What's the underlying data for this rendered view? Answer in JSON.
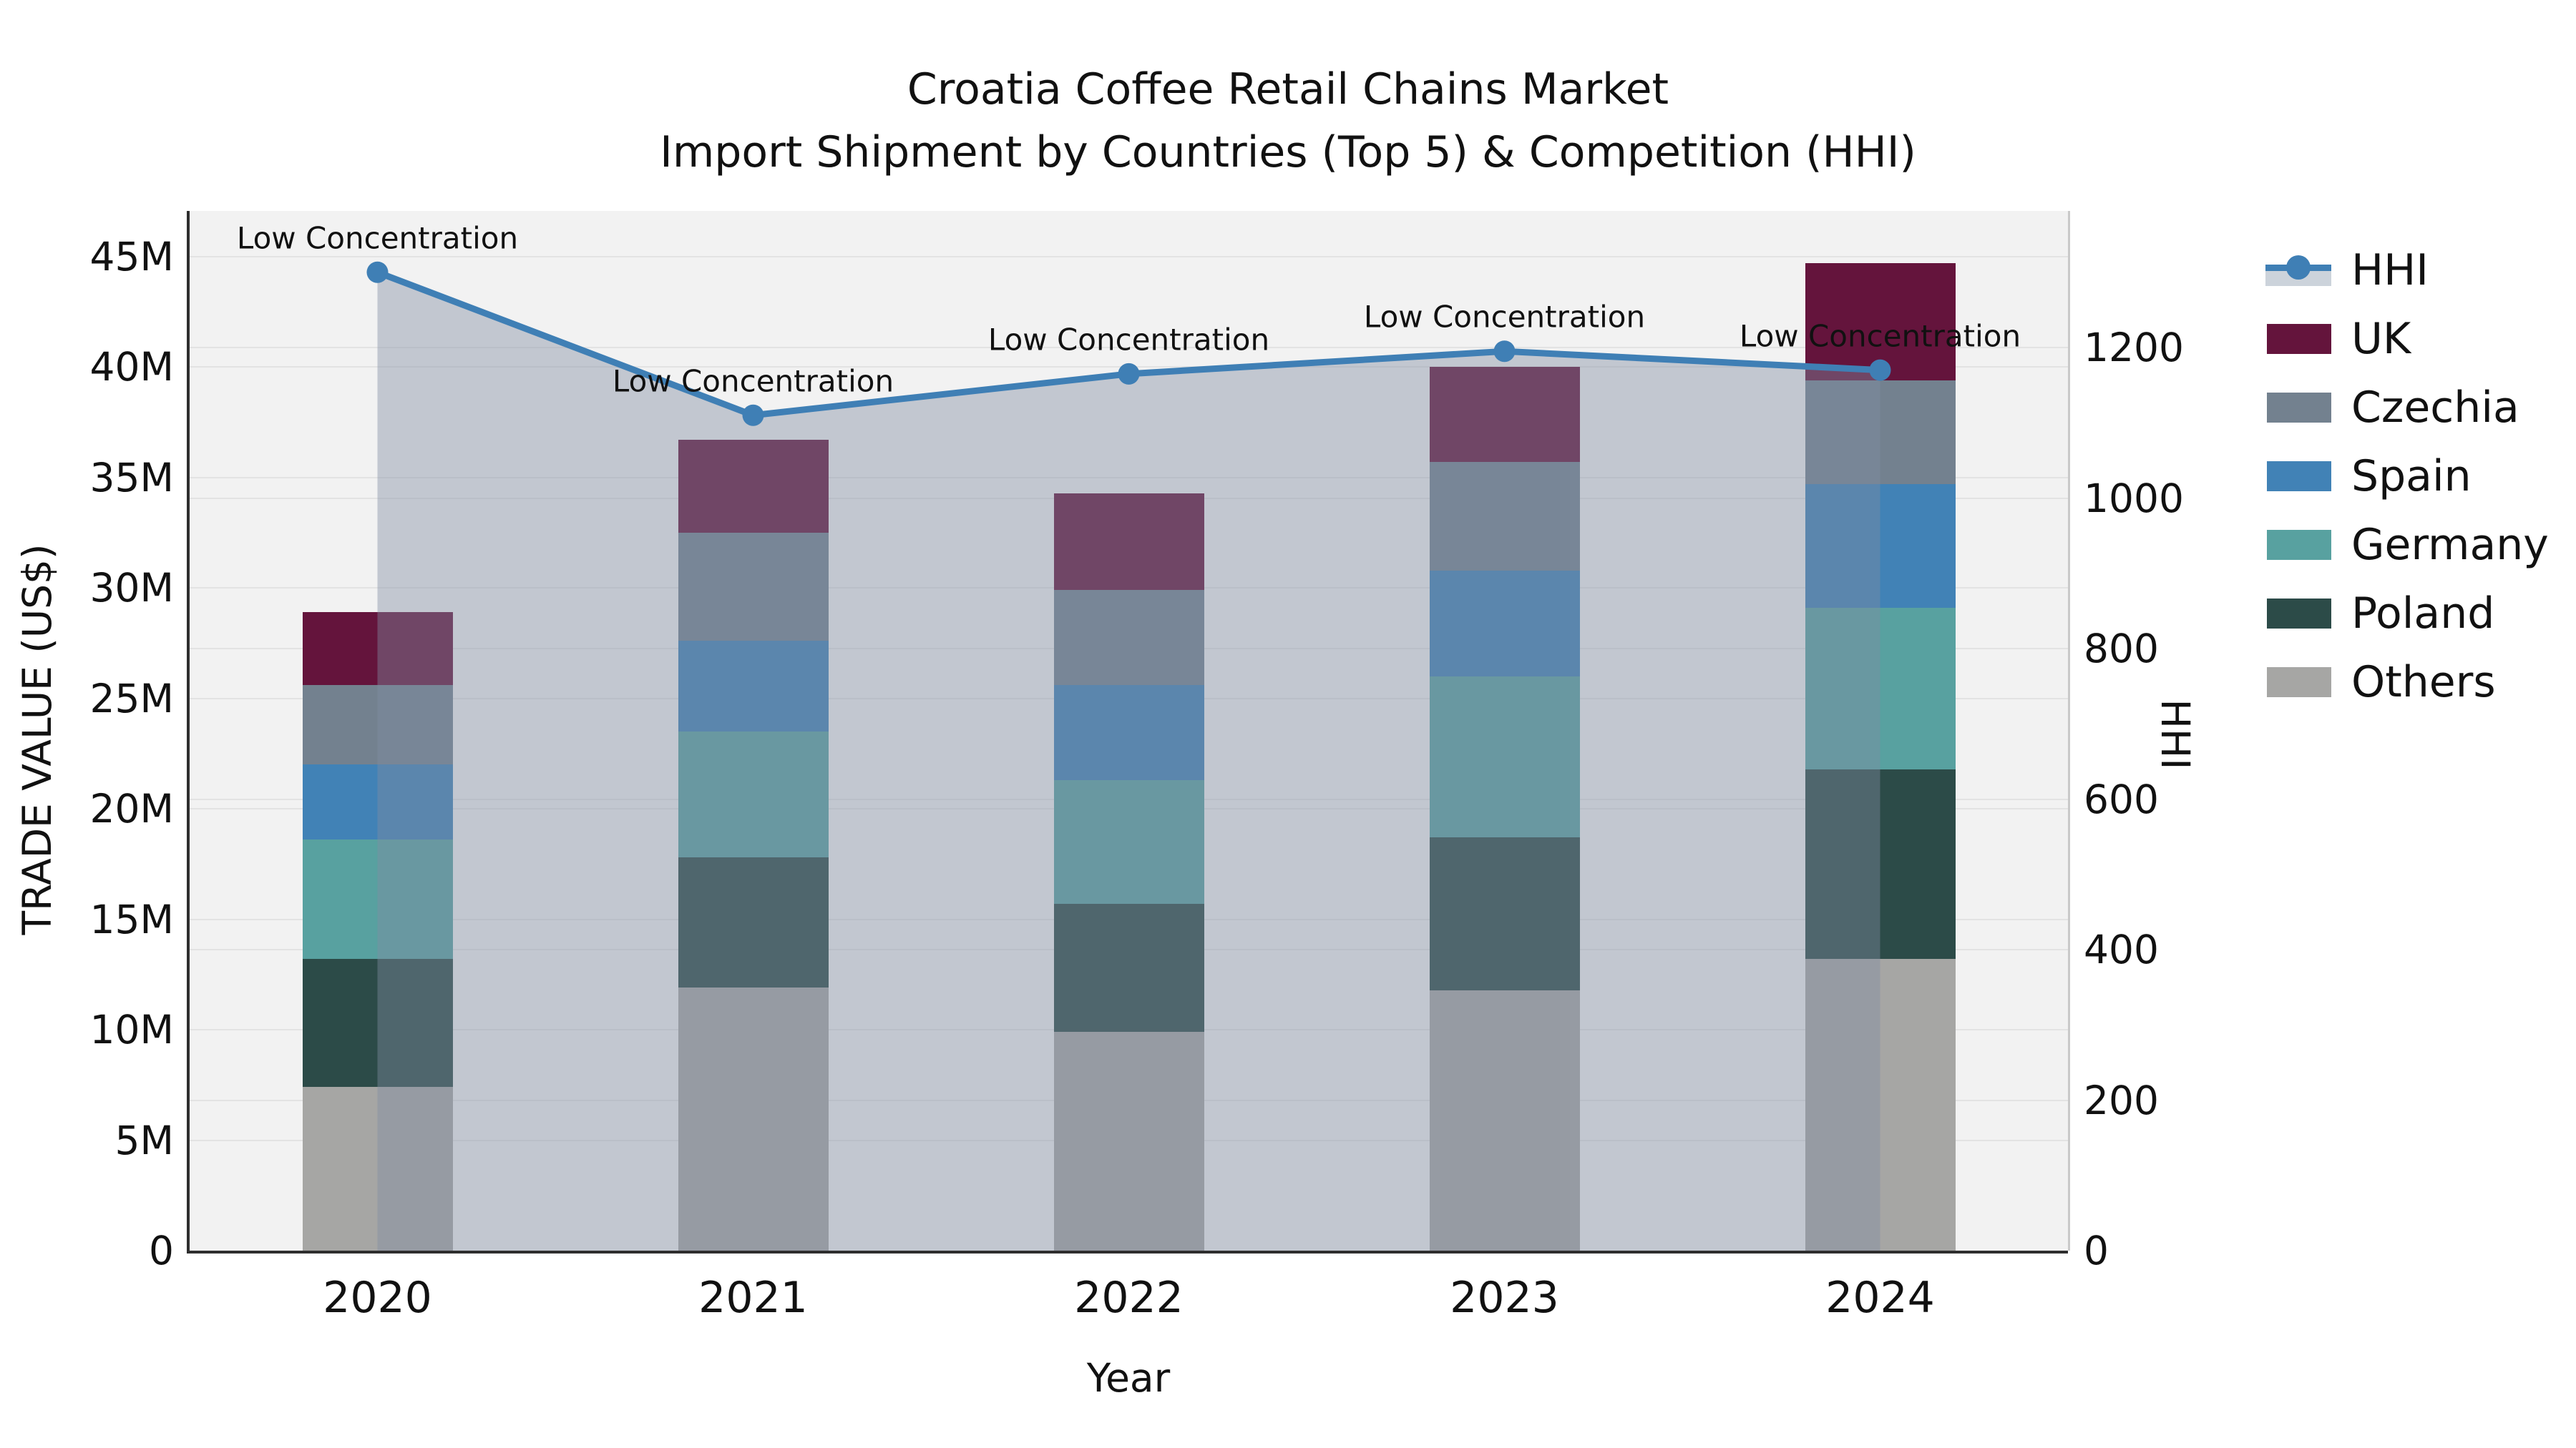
{
  "title": {
    "line1": "Croatia Coffee Retail Chains Market",
    "line2": "Import Shipment by Countries (Top 5) & Competition (HHI)"
  },
  "axes": {
    "x": {
      "label": "Year",
      "categories": [
        "2020",
        "2021",
        "2022",
        "2023",
        "2024"
      ]
    },
    "y_left": {
      "label": "TRADE VALUE (US$)",
      "tick_labels": [
        "0",
        "5M",
        "10M",
        "15M",
        "20M",
        "25M",
        "30M",
        "35M",
        "40M",
        "45M"
      ],
      "min": 0,
      "max_millions": 45
    },
    "y_right": {
      "label": "HHI",
      "tick_labels": [
        "0",
        "200",
        "400",
        "600",
        "800",
        "1000",
        "1200"
      ],
      "min": 0,
      "max": 1200
    }
  },
  "chart_data": {
    "type": "bar",
    "subtype": "stacked-bars-with-line-area-overlay",
    "categories": [
      "2020",
      "2021",
      "2022",
      "2023",
      "2024"
    ],
    "bar_value_unit": "million US$ (left axis)",
    "series": [
      {
        "name": "Others",
        "color": "#a6a6a4",
        "values": [
          7.4,
          11.9,
          9.9,
          11.8,
          13.2
        ]
      },
      {
        "name": "Poland",
        "color": "#2c4b48",
        "values": [
          5.8,
          5.9,
          5.8,
          6.9,
          8.6
        ]
      },
      {
        "name": "Germany",
        "color": "#58a1a0",
        "values": [
          5.4,
          5.7,
          5.6,
          7.3,
          7.3
        ]
      },
      {
        "name": "Spain",
        "color": "#4182b6",
        "values": [
          3.4,
          4.1,
          4.3,
          4.8,
          5.6
        ]
      },
      {
        "name": "Czechia",
        "color": "#73818f",
        "values": [
          3.6,
          4.9,
          4.3,
          4.9,
          4.7
        ]
      },
      {
        "name": "UK",
        "color": "#64143c",
        "values": [
          3.3,
          4.2,
          4.4,
          4.3,
          5.3
        ]
      }
    ],
    "bar_totals_millions": [
      28.9,
      36.7,
      34.3,
      40.0,
      44.7
    ],
    "line_series": {
      "name": "HHI",
      "axis": "right",
      "color": "#3f7fb5",
      "area_fill": "rgba(128,140,162,0.42)",
      "values": [
        1300,
        1110,
        1165,
        1195,
        1170
      ]
    },
    "annotations": [
      "Low Concentration",
      "Low Concentration",
      "Low Concentration",
      "Low Concentration",
      "Low Concentration"
    ],
    "legend": {
      "position": "right",
      "items": [
        {
          "label": "HHI",
          "type": "line-marker",
          "color": "#3f7fb5"
        },
        {
          "label": "UK",
          "type": "patch",
          "color": "#64143c"
        },
        {
          "label": "Czechia",
          "type": "patch",
          "color": "#73818f"
        },
        {
          "label": "Spain",
          "type": "patch",
          "color": "#4182b6"
        },
        {
          "label": "Germany",
          "type": "patch",
          "color": "#58a1a0"
        },
        {
          "label": "Poland",
          "type": "patch",
          "color": "#2c4b48"
        },
        {
          "label": "Others",
          "type": "patch",
          "color": "#a6a6a4"
        }
      ]
    },
    "grid": true,
    "plot_background": "#f2f2f2"
  }
}
